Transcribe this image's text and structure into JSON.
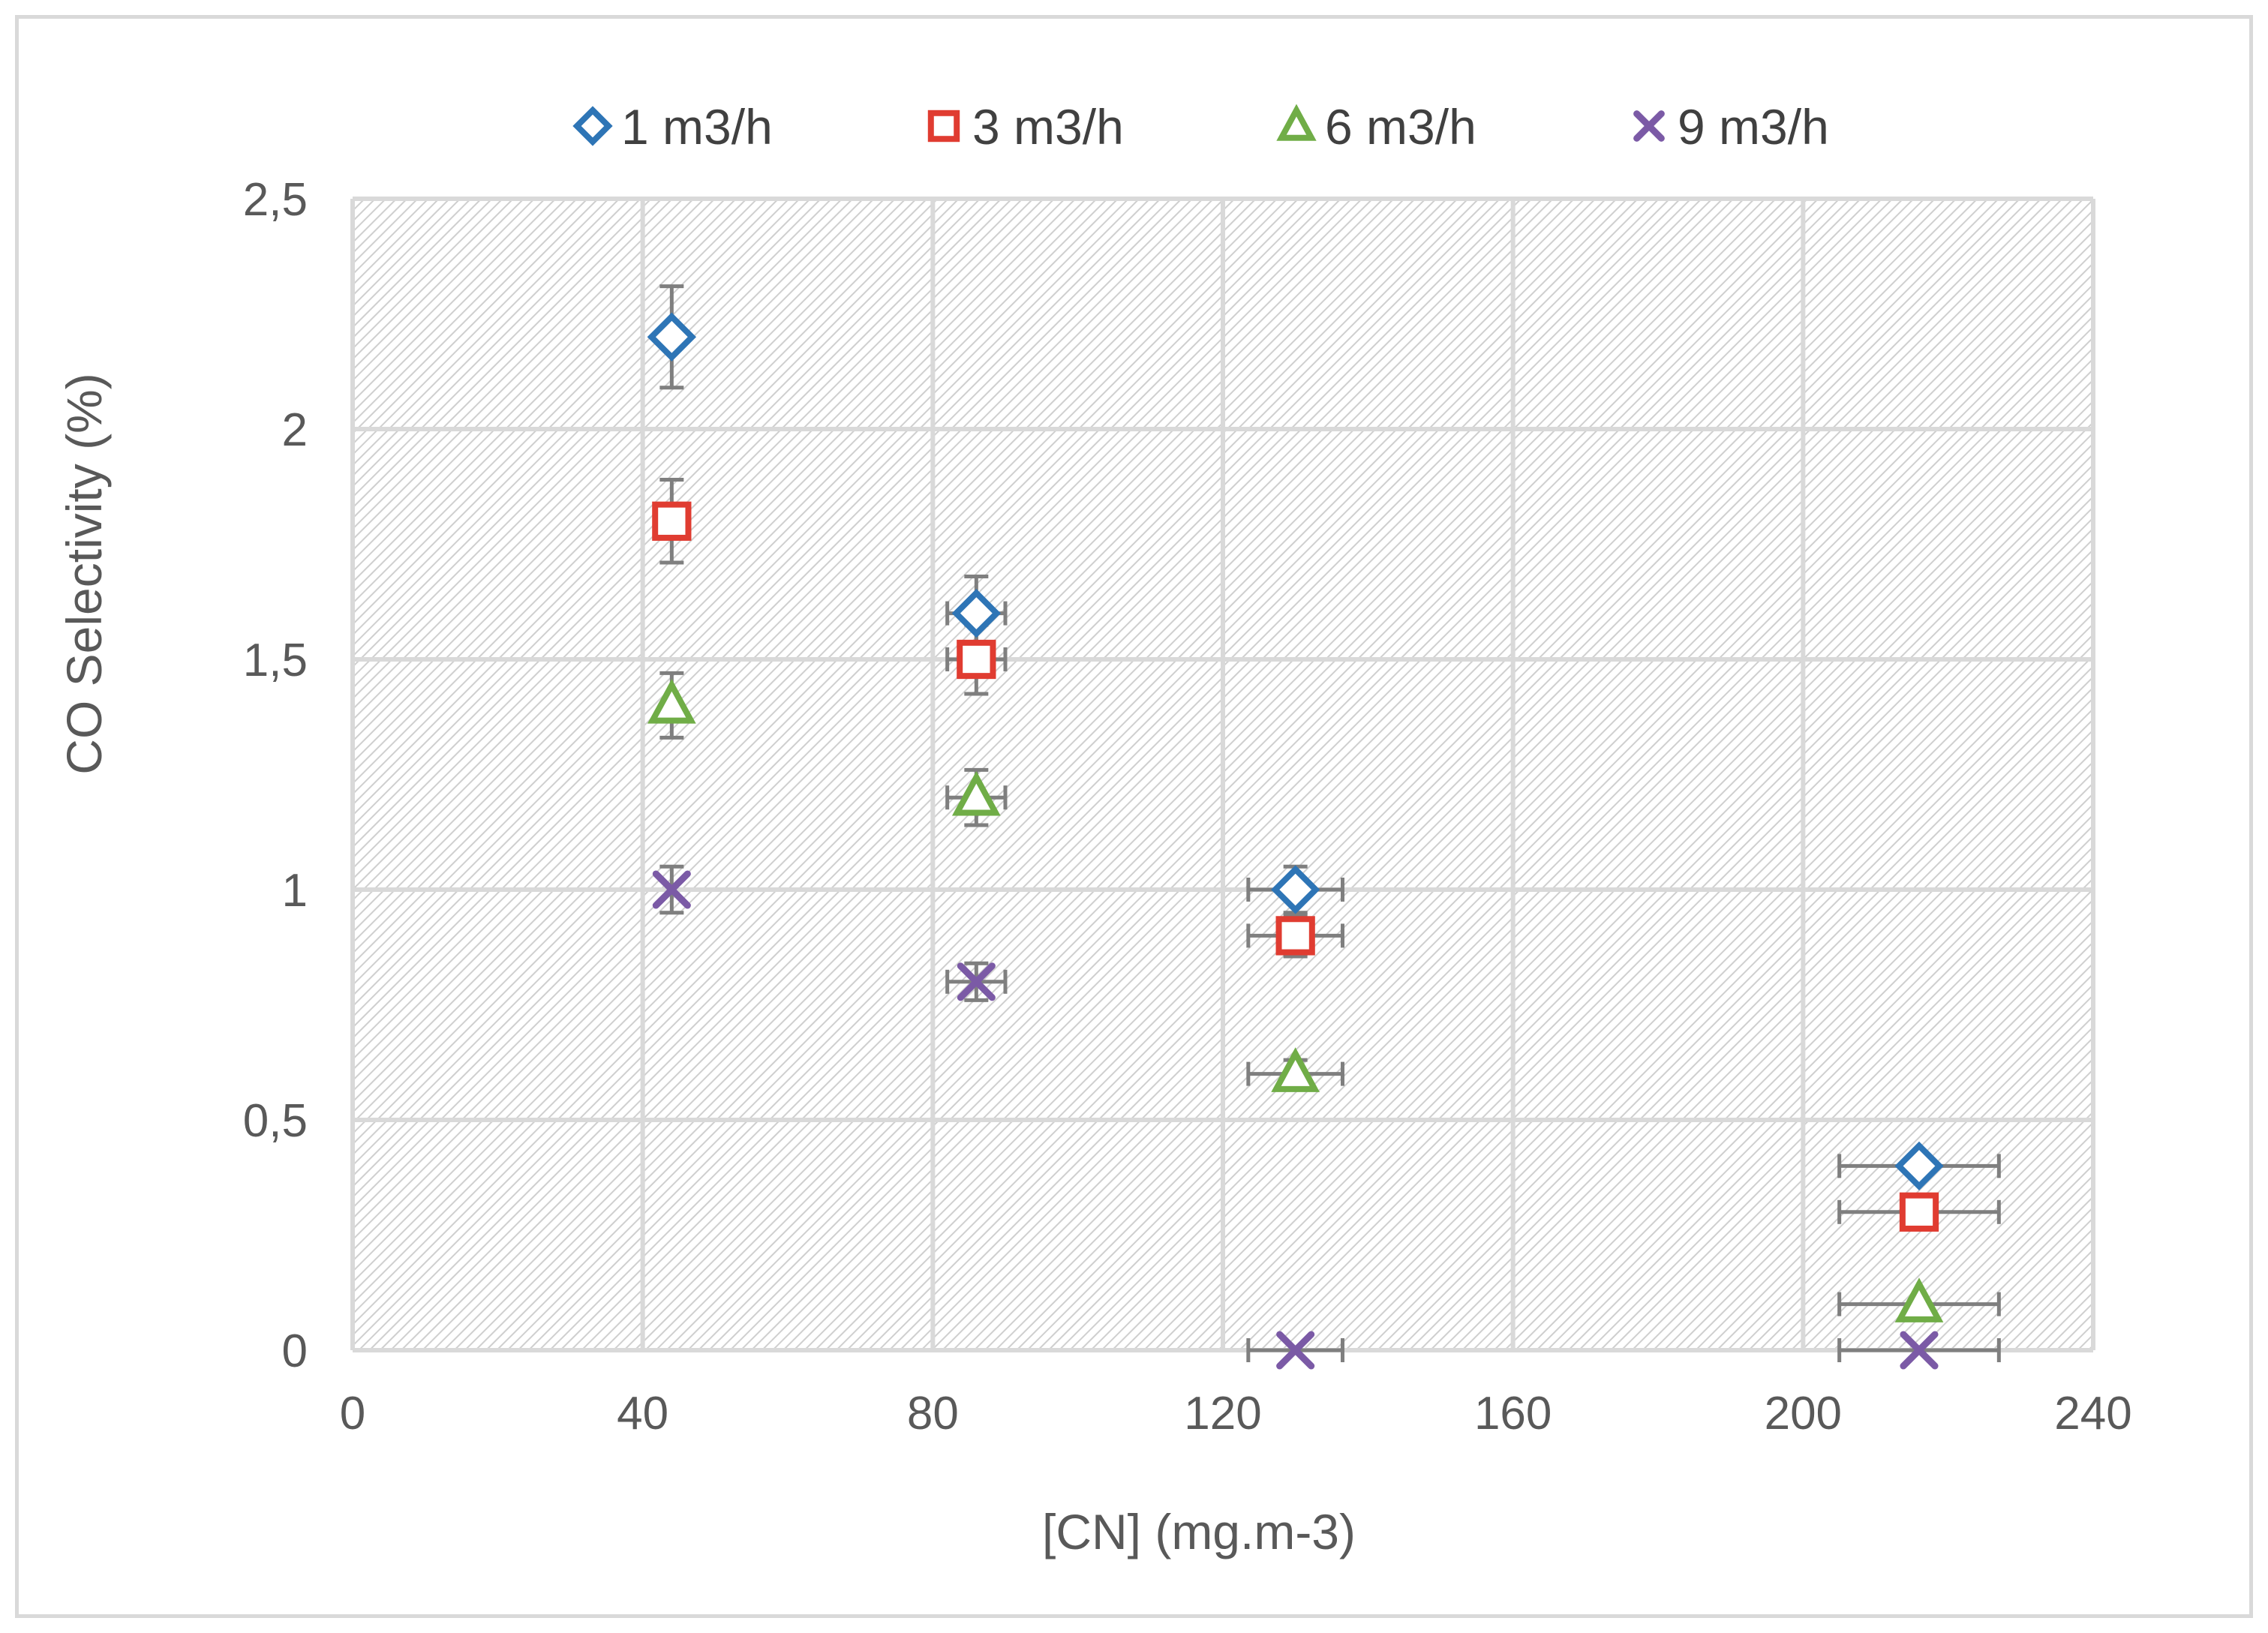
{
  "chart_data": {
    "type": "scatter",
    "title": "",
    "xlabel": "[CN] (mg.m-3)",
    "ylabel": "CO Selectivity (%)",
    "xlim": [
      0,
      240
    ],
    "ylim": [
      0,
      2.5
    ],
    "x_ticks": [
      {
        "value": 0,
        "label": "0"
      },
      {
        "value": 40,
        "label": "40"
      },
      {
        "value": 80,
        "label": "80"
      },
      {
        "value": 120,
        "label": "120"
      },
      {
        "value": 160,
        "label": "160"
      },
      {
        "value": 200,
        "label": "200"
      },
      {
        "value": 240,
        "label": "240"
      }
    ],
    "y_ticks": [
      {
        "value": 0,
        "label": "0"
      },
      {
        "value": 0.5,
        "label": "0,5"
      },
      {
        "value": 1,
        "label": "1"
      },
      {
        "value": 1.5,
        "label": "1,5"
      },
      {
        "value": 2,
        "label": "2"
      },
      {
        "value": 2.5,
        "label": "2,5"
      }
    ],
    "grid": true,
    "plot_background": "hatched-light-gray",
    "legend_position": "top",
    "series": [
      {
        "name": "1 m3/h",
        "marker": "diamond",
        "color": "#2e75b6",
        "points": [
          {
            "x": 44,
            "y": 2.2,
            "xerr": 0,
            "yerr": 0.11
          },
          {
            "x": 86,
            "y": 1.6,
            "xerr": 4,
            "yerr": 0.08
          },
          {
            "x": 130,
            "y": 1.0,
            "xerr": 6.5,
            "yerr": 0.05
          },
          {
            "x": 216,
            "y": 0.4,
            "xerr": 11,
            "yerr": 0.02
          }
        ]
      },
      {
        "name": "3 m3/h",
        "marker": "square",
        "color": "#e03c31",
        "points": [
          {
            "x": 44,
            "y": 1.8,
            "xerr": 0,
            "yerr": 0.09
          },
          {
            "x": 86,
            "y": 1.5,
            "xerr": 4,
            "yerr": 0.075
          },
          {
            "x": 130,
            "y": 0.9,
            "xerr": 6.5,
            "yerr": 0.045
          },
          {
            "x": 216,
            "y": 0.3,
            "xerr": 11,
            "yerr": 0.015
          }
        ]
      },
      {
        "name": "6 m3/h",
        "marker": "triangle",
        "color": "#70ad47",
        "points": [
          {
            "x": 44,
            "y": 1.4,
            "xerr": 0,
            "yerr": 0.07
          },
          {
            "x": 86,
            "y": 1.2,
            "xerr": 4,
            "yerr": 0.06
          },
          {
            "x": 130,
            "y": 0.6,
            "xerr": 6.5,
            "yerr": 0.03
          },
          {
            "x": 216,
            "y": 0.1,
            "xerr": 11,
            "yerr": 0.005
          }
        ]
      },
      {
        "name": "9 m3/h",
        "marker": "x",
        "color": "#7b5aa6",
        "points": [
          {
            "x": 44,
            "y": 1.0,
            "xerr": 0,
            "yerr": 0.05
          },
          {
            "x": 86,
            "y": 0.8,
            "xerr": 4,
            "yerr": 0.04
          },
          {
            "x": 130,
            "y": 0.0,
            "xerr": 6.5,
            "yerr": 0
          },
          {
            "x": 216,
            "y": 0.0,
            "xerr": 11,
            "yerr": 0
          }
        ]
      }
    ],
    "error_bar_color": "#7f7f7f",
    "text_color": "#595959"
  }
}
